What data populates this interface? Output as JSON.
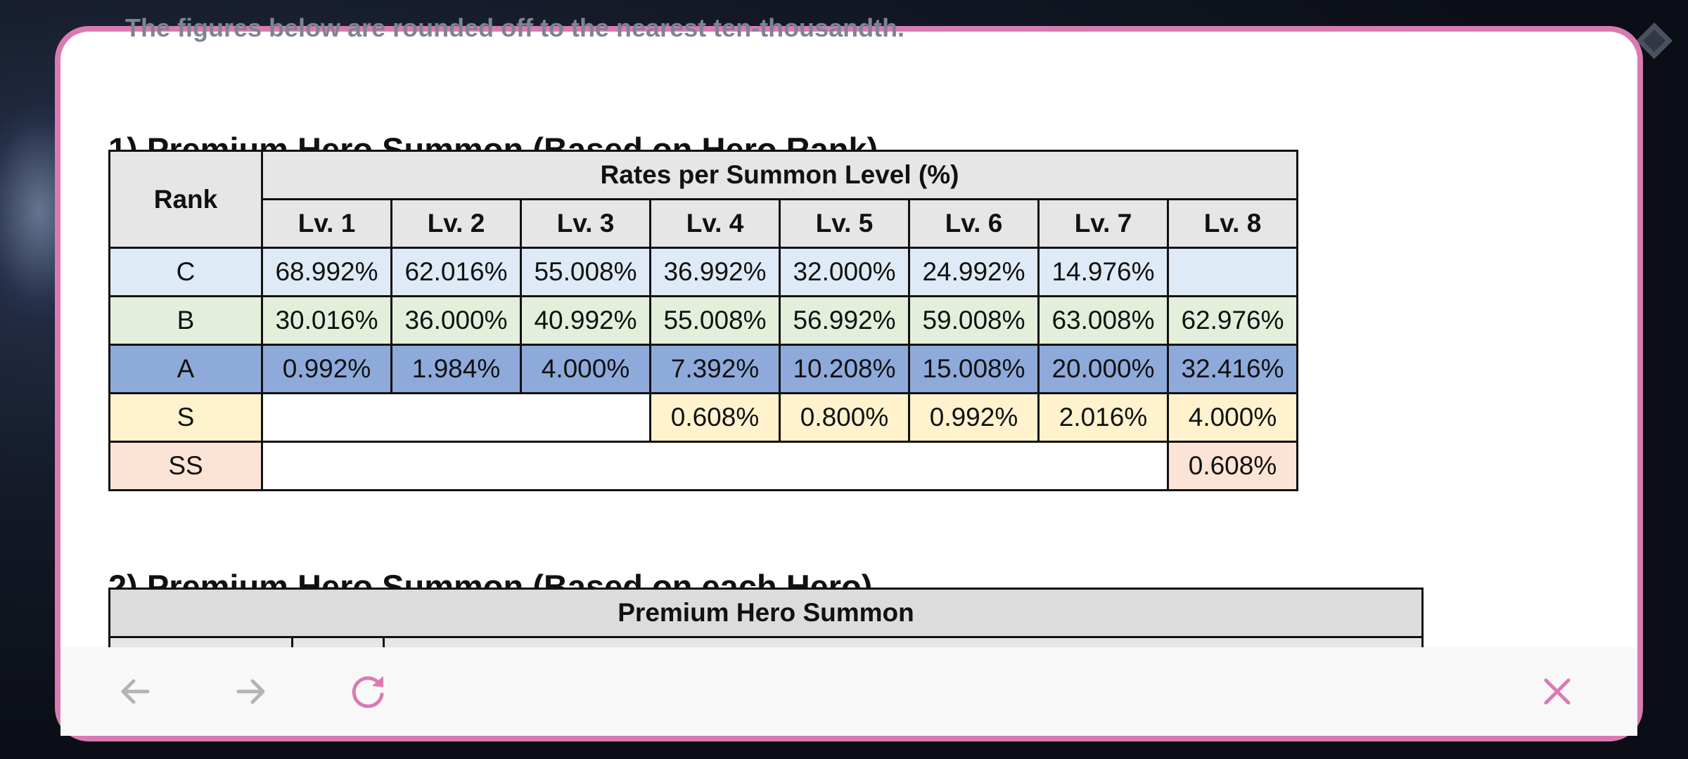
{
  "content": {
    "note": "The figures below are rounded off to the nearest ten-thousandth.",
    "section1_title": "1) Premium Hero Summon (Based on Hero Rank)",
    "section2_title": "2) Premium Hero Summon (Based on each Hero)",
    "rank_table": {
      "rank_header": "Rank",
      "group_header": "Rates per Summon Level (%)",
      "levels": [
        "Lv. 1",
        "Lv. 2",
        "Lv. 3",
        "Lv. 4",
        "Lv. 5",
        "Lv. 6",
        "Lv. 7",
        "Lv. 8"
      ],
      "rows": [
        {
          "rank": "C",
          "color": "#deeaf6",
          "values": [
            "68.992%",
            "62.016%",
            "55.008%",
            "36.992%",
            "32.000%",
            "24.992%",
            "14.976%",
            ""
          ]
        },
        {
          "rank": "B",
          "color": "#e3efda",
          "values": [
            "30.016%",
            "36.000%",
            "40.992%",
            "55.008%",
            "56.992%",
            "59.008%",
            "63.008%",
            "62.976%"
          ]
        },
        {
          "rank": "A",
          "color": "#8eaadb",
          "values": [
            "0.992%",
            "1.984%",
            "4.000%",
            "7.392%",
            "10.208%",
            "15.008%",
            "20.000%",
            "32.416%"
          ]
        },
        {
          "rank": "S",
          "color": "#fff2cc",
          "values": [
            "",
            "",
            "",
            "0.608%",
            "0.800%",
            "0.992%",
            "2.016%",
            "4.000%"
          ]
        },
        {
          "rank": "SS",
          "color": "#fbe4d5",
          "values": [
            "",
            "",
            "",
            "",
            "",
            "",
            "",
            "0.608%"
          ]
        }
      ]
    },
    "hero_table": {
      "header": "Premium Hero Summon"
    }
  },
  "toolbar": {
    "back_icon": "arrow-left-icon",
    "forward_icon": "arrow-right-icon",
    "reload_icon": "reload-icon",
    "close_icon": "close-icon"
  },
  "colors": {
    "accent": "#d97bb2",
    "nav_disabled": "#b3b3b3"
  }
}
